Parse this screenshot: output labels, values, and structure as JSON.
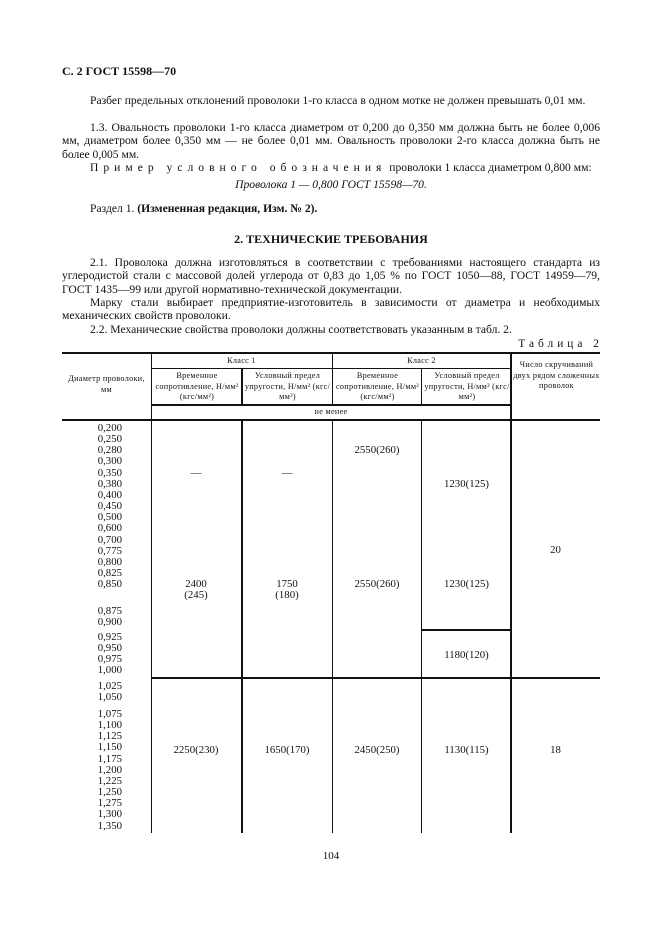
{
  "header": "С. 2 ГОСТ 15598—70",
  "paragraphs": {
    "p1": "Разбег предельных отклонений проволоки 1-го класса в одном мотке не должен превышать 0,01 мм.",
    "p2": "1.3. Овальность проволоки 1-го класса диаметром от 0,200 до 0,350 мм должна быть не более 0,006 мм, диаметром более 0,350 мм — не более 0,01 мм. Овальность проволоки 2-го класса должна быть не более 0,005 мм.",
    "p3_spaced": "Пример условного обозначения",
    "p3_rest": " проволоки 1 класса диаметром 0,800 мм:",
    "example": "Проволока 1 — 0,800 ГОСТ 15598—70.",
    "p4_plain": "Раздел 1. ",
    "p4_bold": "(Измененная редакция, Изм. № 2).",
    "section_title": "2. ТЕХНИЧЕСКИЕ ТРЕБОВАНИЯ",
    "p5": "2.1. Проволока должна изготовляться в соответствии с требованиями настоящего стандарта из углеродистой стали с массовой долей углерода от 0,83 до 1,05 % по ГОСТ 1050—88, ГОСТ 14959—79, ГОСТ 1435—99 или другой нормативно-технической документации.",
    "p6": "Марку стали выбирает предприятие-изготовитель в зависимости от диаметра и необходимых механических свойств проволоки.",
    "p7": "2.2. Механические свойства проволоки должны соответствовать указанным в табл. 2."
  },
  "table": {
    "caption": "Таблица 2",
    "col_diameter": "Диаметр проволоки, мм",
    "class1": "Класс 1",
    "class2": "Класс 2",
    "sub_strength": "Временное сопротивление, Н/мм² (кгс/мм²)",
    "sub_yield": "Условный предел упругости, Н/мм² (кгс/мм²)",
    "col_twists": "Число скручиваний двух рядом сложенных проволок",
    "min_note": "не менее",
    "group1": {
      "diam_a": [
        "0,200",
        "0,250",
        "0,280",
        "0,300",
        "0,350",
        "0,380",
        "0,400",
        "0,450",
        "0,500",
        "0,600",
        "0,700",
        "0,775",
        "0,800",
        "0,825",
        "0,850"
      ],
      "diam_b": [
        "0,875",
        "0,900"
      ],
      "diam_c": [
        "0,925",
        "0,950",
        "0,975",
        "1,000"
      ],
      "c1_strength_top": "—",
      "c1_yield_top": "—",
      "c2_strength_top": "2550(260)",
      "c2_yield_top": "1230(125)",
      "c1_strength": "2400",
      "c1_strength_kgs": "(245)",
      "c1_yield": "1750",
      "c1_yield_kgs": "(180)",
      "c2_strength": "2550(260)",
      "c2_yield": "1230(125)",
      "c2_yield_low": "1180(120)",
      "twists": "20"
    },
    "group2": {
      "diam_a": [
        "1,025",
        "1,050"
      ],
      "diam_b": [
        "1,075",
        "1,100",
        "1,125",
        "1,150",
        "1,175",
        "1,200",
        "1,225",
        "1,250",
        "1,275",
        "1,300",
        "1,350"
      ],
      "c1_strength": "2250(230)",
      "c1_yield": "1650(170)",
      "c2_strength": "2450(250)",
      "c2_yield": "1130(115)",
      "twists": "18"
    }
  },
  "page_number": "104"
}
